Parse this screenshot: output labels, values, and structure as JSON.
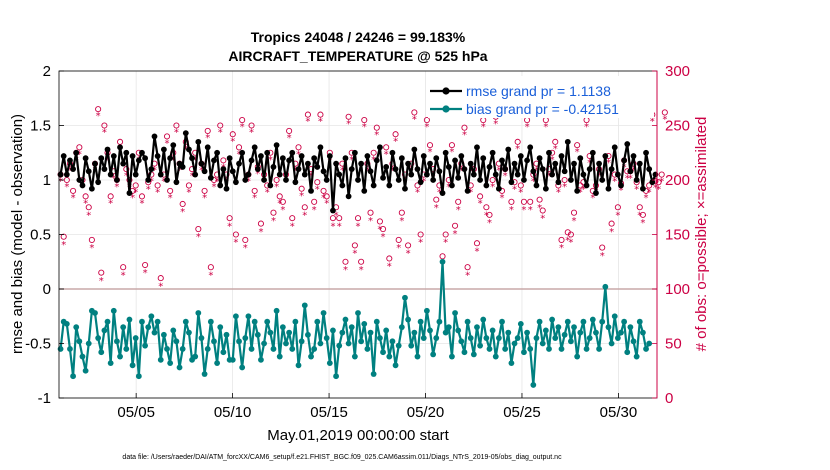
{
  "chart_data": {
    "type": "line",
    "title": "Tropics 24048 / 24246 = 99.183%",
    "subtitle": "AIRCRAFT_TEMPERATURE @ 525 hPa",
    "xlabel": "May.01,2019 00:00:00 start",
    "ylabel": "rmse and bias (model - observation)",
    "ylabel_right": "# of obs: o=possible; ×=assimilated",
    "footer": "data file: /Users/raeder/DAI/ATM_forcXX/CAM6_setup/f.e21.FHIST_BGC.f09_025.CAM6assim.011/Diags_NTrS_2019-05/obs_diag_output.nc",
    "xlim": [
      1,
      32
    ],
    "ylim": [
      -1,
      2
    ],
    "ylim_right": [
      0,
      300
    ],
    "x_ticks": [
      5,
      10,
      15,
      20,
      25,
      30
    ],
    "x_tick_labels": [
      "05/05",
      "05/10",
      "05/15",
      "05/20",
      "05/25",
      "05/30"
    ],
    "y_ticks": [
      -1,
      -0.5,
      0,
      0.5,
      1,
      1.5,
      2
    ],
    "y_tick_labels": [
      "-1",
      "-0.5",
      "0",
      "0.5",
      "1",
      "1.5",
      "2"
    ],
    "y_ticks_right": [
      0,
      50,
      100,
      150,
      200,
      250,
      300
    ],
    "y_tick_labels_right": [
      "0",
      "50",
      "100",
      "150",
      "200",
      "250",
      "300"
    ],
    "zero_line": 0,
    "legend": [
      {
        "label": "rmse grand pr = 1.1138",
        "color": "#000000"
      },
      {
        "label": "bias grand pr = -0.42151",
        "color": "#008080"
      }
    ],
    "colors": {
      "rmse": "#000000",
      "bias": "#008080",
      "obs": "#cc0044",
      "zero": "#c8a8a8"
    },
    "series": [
      {
        "name": "rmse",
        "values": [
          1.05,
          1.22,
          1.05,
          1.18,
          1.1,
          1.25,
          1.0,
          0.95,
          1.2,
          1.08,
          0.92,
          1.15,
          0.98,
          1.2,
          1.1,
          1.28,
          1.05,
          1.22,
          1.0,
          1.3,
          1.15,
          1.25,
          0.88,
          1.22,
          1.05,
          1.18,
          1.25,
          1.2,
          1.0,
          1.1,
          1.4,
          1.22,
          1.05,
          1.28,
          1.0,
          1.2,
          1.32,
          0.98,
          1.15,
          1.12,
          1.43,
          1.28,
          1.2,
          1.05,
          1.35,
          1.15,
          1.08,
          1.3,
          1.02,
          1.18,
          1.25,
          0.95,
          1.1,
          0.92,
          1.2,
          1.08,
          0.98,
          1.15,
          1.25,
          1.0,
          1.05,
          1.18,
          1.3,
          1.1,
          1.22,
          1.0,
          1.25,
          0.95,
          1.12,
          1.32,
          1.05,
          1.2,
          1.0,
          1.18,
          1.25,
          0.98,
          1.1,
          1.22,
          1.05,
          1.15,
          0.9,
          1.2,
          1.12,
          1.3,
          1.08,
          1.0,
          1.22,
          0.72,
          1.15,
          1.05,
          0.95,
          1.2,
          0.85,
          1.1,
          1.25,
          1.0,
          1.15,
          0.9,
          1.22,
          1.08,
          0.95,
          1.18,
          1.3,
          1.02,
          1.12,
          0.95,
          1.25,
          1.1,
          1.0,
          1.2,
          0.92,
          1.15,
          1.05,
          1.28,
          1.1,
          0.98,
          1.22,
          1.05,
          1.15,
          1.0,
          1.2,
          1.08,
          0.88,
          1.25,
          1.12,
          0.95,
          1.18,
          1.02,
          1.22,
          1.1,
          0.9,
          1.15,
          1.05,
          1.3,
          1.0,
          1.2,
          0.95,
          1.12,
          1.25,
          1.05,
          0.92,
          1.18,
          1.1,
          1.28,
          0.98,
          1.15,
          1.05,
          1.22,
          1.0,
          1.18,
          1.3,
          1.08,
          0.95,
          1.2,
          1.1,
          0.92,
          1.25,
          1.05,
          1.15,
          0.98,
          1.22,
          1.08,
          1.35,
          1.0,
          1.15,
          0.9,
          1.2,
          1.05,
          0.95,
          1.1,
          1.25,
          0.88,
          1.15,
          1.0,
          1.22,
          0.92,
          1.1,
          1.3,
          1.05,
          0.95,
          1.18,
          1.33,
          1.08,
          1.22,
          1.0,
          1.15,
          0.92,
          1.25,
          1.1,
          0.98,
          1.05
        ]
      },
      {
        "name": "bias",
        "values": [
          -0.55,
          -0.3,
          -0.32,
          -0.55,
          -0.8,
          -0.35,
          -0.48,
          -0.62,
          -0.75,
          -0.5,
          -0.2,
          -0.22,
          -0.45,
          -0.58,
          -0.38,
          -0.3,
          -0.68,
          -0.2,
          -0.48,
          -0.62,
          -0.35,
          -0.55,
          -0.28,
          -0.7,
          -0.45,
          -0.8,
          -0.3,
          -0.52,
          -0.35,
          -0.25,
          -0.4,
          -0.3,
          -0.65,
          -0.42,
          -0.55,
          -0.68,
          -0.38,
          -0.48,
          -0.72,
          -0.55,
          -0.3,
          -0.4,
          -0.65,
          -0.62,
          -0.22,
          -0.45,
          -0.78,
          -0.55,
          -0.3,
          -0.48,
          -0.68,
          -0.35,
          -0.58,
          -0.42,
          -0.65,
          -0.65,
          -0.25,
          -0.48,
          -0.72,
          -0.45,
          -0.25,
          -0.55,
          -0.3,
          -0.42,
          -0.65,
          -0.5,
          -0.3,
          -0.4,
          -0.55,
          -0.2,
          -0.62,
          -0.35,
          -0.5,
          -0.4,
          -0.55,
          -0.3,
          -0.7,
          -0.48,
          -0.15,
          -0.42,
          -0.62,
          -0.55,
          -0.3,
          -0.5,
          -0.22,
          -0.45,
          -0.68,
          -0.38,
          -0.8,
          -0.52,
          -0.4,
          -0.28,
          -0.5,
          -0.35,
          -0.62,
          -0.22,
          -0.48,
          -0.32,
          -0.55,
          -0.4,
          -0.78,
          -0.3,
          -0.45,
          -0.58,
          -0.38,
          -0.62,
          -0.48,
          -0.7,
          -0.52,
          -0.35,
          -0.08,
          -0.28,
          -0.52,
          -0.4,
          -0.62,
          -0.3,
          -0.45,
          -0.2,
          -0.38,
          -0.6,
          -0.45,
          -0.3,
          0.25,
          -0.4,
          -0.35,
          -0.62,
          -0.22,
          -0.38,
          -0.48,
          -0.58,
          -0.3,
          -0.45,
          -0.6,
          -0.35,
          -0.52,
          -0.28,
          -0.45,
          -0.55,
          -0.38,
          -0.62,
          -0.45,
          -0.3,
          -0.55,
          -0.4,
          -0.68,
          -0.5,
          -0.45,
          -0.32,
          -0.58,
          -0.4,
          -0.55,
          -0.88,
          -0.45,
          -0.3,
          -0.5,
          -0.38,
          -0.55,
          -0.28,
          -0.45,
          -0.35,
          -0.55,
          -0.42,
          -0.3,
          -0.48,
          -0.35,
          -0.62,
          -0.4,
          -0.3,
          -0.55,
          -0.45,
          -0.28,
          -0.4,
          -0.55,
          -0.3,
          0.02,
          -0.35,
          -0.5,
          -0.25,
          -0.45,
          -0.4,
          -0.3,
          -0.58,
          -0.35,
          -0.48,
          -0.62,
          -0.3,
          -0.4,
          -0.55,
          -0.5
        ]
      },
      {
        "name": "obs_possible",
        "values": [
          205,
          148,
          200,
          215,
          190,
          225,
          230,
          200,
          185,
          175,
          145,
          215,
          265,
          115,
          250,
          225,
          185,
          208,
          200,
          235,
          120,
          210,
          200,
          190,
          195,
          225,
          185,
          122,
          198,
          205,
          215,
          195,
          110,
          205,
          240,
          190,
          225,
          250,
          215,
          178,
          235,
          195,
          210,
          225,
          155,
          215,
          190,
          245,
          120,
          200,
          205,
          250,
          218,
          205,
          165,
          242,
          150,
          230,
          255,
          145,
          205,
          250,
          190,
          212,
          160,
          205,
          195,
          225,
          170,
          200,
          185,
          180,
          205,
          245,
          165,
          215,
          230,
          192,
          175,
          260,
          210,
          180,
          198,
          260,
          190,
          185,
          225,
          165,
          175,
          165,
          215,
          125,
          258,
          225,
          140,
          165,
          125,
          255,
          215,
          170,
          225,
          248,
          162,
          155,
          230,
          128,
          215,
          242,
          145,
          170,
          205,
          140,
          215,
          262,
          195,
          150,
          205,
          255,
          232,
          210,
          182,
          195,
          130,
          150,
          200,
          232,
          158,
          180,
          215,
          248,
          120,
          195,
          210,
          142,
          185,
          255,
          175,
          168,
          200,
          258,
          215,
          190,
          210,
          265,
          180,
          198,
          235,
          195,
          180,
          255,
          180,
          205,
          215,
          182,
          172,
          255,
          210,
          225,
          235,
          195,
          145,
          200,
          152,
          150,
          170,
          232,
          195,
          198,
          255,
          222,
          190,
          195,
          210,
          138,
          265,
          222,
          160,
          205,
          175,
          197,
          218,
          208,
          208,
          215,
          198,
          175,
          168,
          190,
          195,
          260,
          199,
          198,
          205,
          262
        ]
      },
      {
        "name": "obs_assimilated",
        "values": [
          204,
          146,
          199,
          214,
          189,
          224,
          229,
          199,
          184,
          173,
          143,
          214,
          264,
          113,
          249,
          224,
          184,
          207,
          199,
          234,
          118,
          209,
          199,
          189,
          194,
          224,
          184,
          120,
          197,
          204,
          214,
          194,
          108,
          204,
          239,
          189,
          224,
          249,
          214,
          176,
          234,
          194,
          209,
          224,
          153,
          214,
          189,
          244,
          118,
          199,
          204,
          249,
          217,
          204,
          163,
          241,
          148,
          229,
          254,
          143,
          204,
          249,
          189,
          211,
          158,
          204,
          194,
          224,
          168,
          199,
          184,
          178,
          204,
          244,
          163,
          214,
          229,
          191,
          173,
          259,
          209,
          178,
          197,
          259,
          189,
          184,
          224,
          163,
          173,
          163,
          214,
          123,
          257,
          224,
          138,
          163,
          123,
          254,
          214,
          168,
          224,
          247,
          160,
          153,
          229,
          126,
          214,
          241,
          143,
          168,
          204,
          138,
          214,
          261,
          194,
          148,
          204,
          254,
          231,
          209,
          180,
          194,
          128,
          148,
          199,
          231,
          156,
          178,
          214,
          247,
          118,
          194,
          209,
          140,
          184,
          254,
          173,
          166,
          199,
          257,
          214,
          189,
          209,
          264,
          178,
          197,
          234,
          194,
          178,
          254,
          178,
          204,
          214,
          180,
          170,
          254,
          209,
          224,
          234,
          194,
          143,
          199,
          150,
          148,
          168,
          231,
          194,
          197,
          254,
          221,
          189,
          194,
          209,
          136,
          264,
          221,
          158,
          204,
          173,
          196,
          217,
          207,
          207,
          214,
          197,
          173,
          166,
          189,
          194,
          259,
          198,
          197,
          204,
          261
        ]
      }
    ]
  }
}
